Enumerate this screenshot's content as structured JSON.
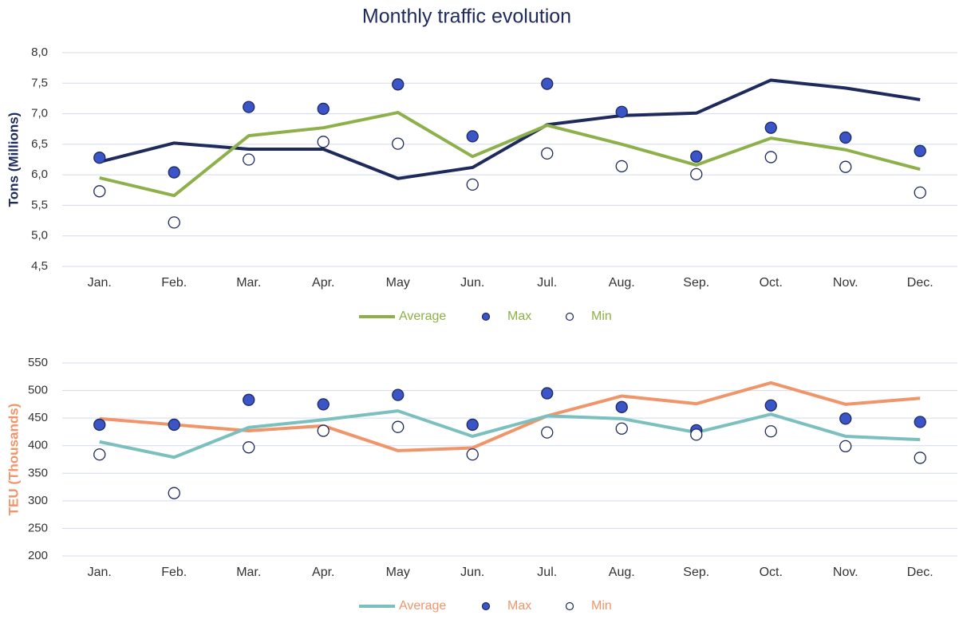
{
  "chart_data": [
    {
      "type": "line",
      "title": "Monthly traffic evolution",
      "ylabel": "Tons (Millions)",
      "ylabel_color": "#1f2a5c",
      "legend_text_color": "#8db04a",
      "grid": true,
      "categories": [
        "Jan.",
        "Feb.",
        "Mar.",
        "Apr.",
        "May",
        "Jun.",
        "Jul.",
        "Aug.",
        "Sep.",
        "Oct.",
        "Nov.",
        "Dec."
      ],
      "ylim": [
        4.5,
        8.0
      ],
      "yticks": [
        {
          "value": 4.5,
          "label": "4,5"
        },
        {
          "value": 5.0,
          "label": "5,0"
        },
        {
          "value": 5.5,
          "label": "5,5"
        },
        {
          "value": 6.0,
          "label": "6,0"
        },
        {
          "value": 6.5,
          "label": "6,5"
        },
        {
          "value": 7.0,
          "label": "7,0"
        },
        {
          "value": 7.5,
          "label": "7,5"
        },
        {
          "value": 8.0,
          "label": "8,0"
        }
      ],
      "series": [
        {
          "color": "#1f2a5c",
          "type": "line",
          "values": [
            6.21,
            6.52,
            6.42,
            6.42,
            5.94,
            6.12,
            6.82,
            6.97,
            7.01,
            7.55,
            7.42,
            7.23
          ]
        },
        {
          "name": "Average",
          "color": "#8db04a",
          "type": "line",
          "values": [
            5.95,
            5.66,
            6.64,
            6.77,
            7.02,
            6.3,
            6.81,
            6.5,
            6.16,
            6.6,
            6.41,
            6.09
          ]
        },
        {
          "name": "Max",
          "color": "#3b55c9",
          "edgecolor": "#1f2a5c",
          "type": "scatter",
          "values": [
            6.28,
            6.04,
            7.11,
            7.08,
            7.48,
            6.63,
            7.49,
            7.03,
            6.3,
            6.77,
            6.61,
            6.39
          ]
        },
        {
          "name": "Min",
          "color": "#ffffff",
          "edgecolor": "#1f2a5c",
          "type": "scatter",
          "values": [
            5.73,
            5.22,
            6.25,
            6.54,
            6.51,
            5.84,
            6.35,
            6.14,
            6.01,
            6.29,
            6.13,
            5.71
          ]
        }
      ]
    },
    {
      "type": "line",
      "ylabel": "TEU (Thousands)",
      "ylabel_color": "#f0956a",
      "legend_text_color": "#f0956a",
      "grid": true,
      "categories": [
        "Jan.",
        "Feb.",
        "Mar.",
        "Apr.",
        "May",
        "Jun.",
        "Jul.",
        "Aug.",
        "Sep.",
        "Oct.",
        "Nov.",
        "Dec."
      ],
      "ylim": [
        200,
        550
      ],
      "yticks": [
        200,
        250,
        300,
        350,
        400,
        450,
        500,
        550
      ],
      "series": [
        {
          "color": "#f0956a",
          "type": "line",
          "values": [
            449,
            438,
            427,
            436,
            391,
            396,
            454,
            490,
            476,
            514,
            475,
            486
          ]
        },
        {
          "name": "Average",
          "color": "#7bbfbf",
          "type": "line",
          "values": [
            407,
            379,
            433,
            447,
            463,
            417,
            454,
            449,
            424,
            457,
            417,
            411
          ]
        },
        {
          "name": "Max",
          "color": "#3b55c9",
          "edgecolor": "#1f2a5c",
          "type": "scatter",
          "values": [
            438,
            438,
            483,
            475,
            492,
            438,
            495,
            470,
            428,
            473,
            449,
            443
          ]
        },
        {
          "name": "Min",
          "color": "#ffffff",
          "edgecolor": "#1f2a5c",
          "type": "scatter",
          "values": [
            384,
            314,
            397,
            427,
            434,
            384,
            424,
            431,
            420,
            426,
            399,
            378
          ]
        }
      ]
    }
  ]
}
